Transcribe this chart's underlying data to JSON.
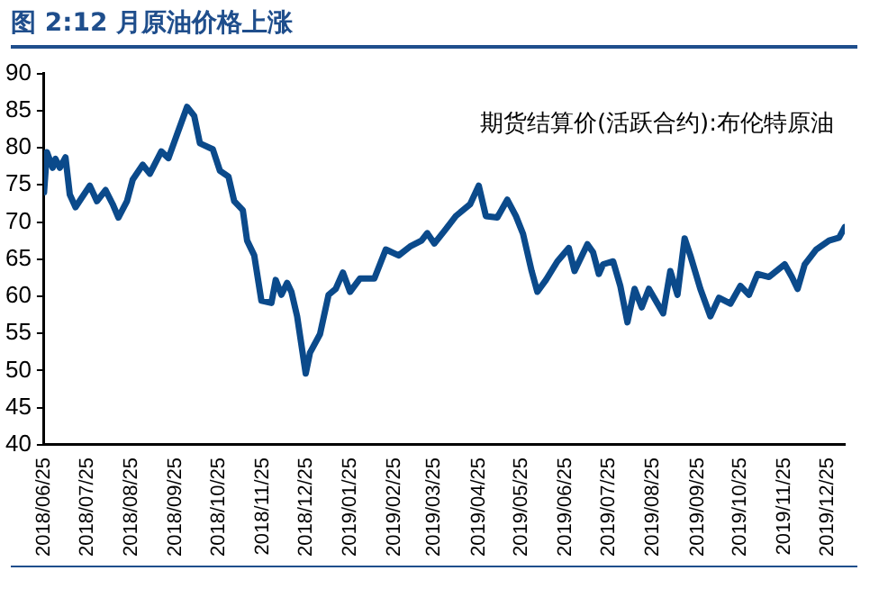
{
  "chart_data": {
    "type": "line",
    "title": "图 2:12 月原油价格上涨",
    "legend": "top right",
    "marker": "none",
    "line_style": "solid",
    "grid": false,
    "xlim": [
      "2018-06-25",
      "2020-01-06"
    ],
    "xticks": [
      {
        "value": "2018-06-25",
        "label": "2018/06/25"
      },
      {
        "value": "2018-07-25",
        "label": "2018/07/25"
      },
      {
        "value": "2018-08-25",
        "label": "2018/08/25"
      },
      {
        "value": "2018-09-25",
        "label": "2018/09/25"
      },
      {
        "value": "2018-10-25",
        "label": "2018/10/25"
      },
      {
        "value": "2018-11-25",
        "label": "2018/11/25"
      },
      {
        "value": "2018-12-25",
        "label": "2018/12/25"
      },
      {
        "value": "2019-01-25",
        "label": "2019/01/25"
      },
      {
        "value": "2019-02-25",
        "label": "2019/02/25"
      },
      {
        "value": "2019-03-25",
        "label": "2019/03/25"
      },
      {
        "value": "2019-04-25",
        "label": "2019/04/25"
      },
      {
        "value": "2019-05-25",
        "label": "2019/05/25"
      },
      {
        "value": "2019-06-25",
        "label": "2019/06/25"
      },
      {
        "value": "2019-07-25",
        "label": "2019/07/25"
      },
      {
        "value": "2019-08-25",
        "label": "2019/08/25"
      },
      {
        "value": "2019-09-25",
        "label": "2019/09/25"
      },
      {
        "value": "2019-10-25",
        "label": "2019/10/25"
      },
      {
        "value": "2019-11-25",
        "label": "2019/11/25"
      },
      {
        "value": "2019-12-25",
        "label": "2019/12/25"
      }
    ],
    "ylim": [
      40,
      90
    ],
    "yticks": [
      40,
      45,
      50,
      55,
      60,
      65,
      70,
      75,
      80,
      85,
      90
    ],
    "x": [
      "2018-06-25",
      "2018-06-27",
      "2018-07-01",
      "2018-07-03",
      "2018-07-06",
      "2018-07-10",
      "2018-07-13",
      "2018-07-17",
      "2018-07-27",
      "2018-08-01",
      "2018-08-07",
      "2018-08-12",
      "2018-08-16",
      "2018-08-22",
      "2018-08-26",
      "2018-09-02",
      "2018-09-07",
      "2018-09-15",
      "2018-09-20",
      "2018-09-26",
      "2018-10-03",
      "2018-10-08",
      "2018-10-12",
      "2018-10-21",
      "2018-10-26",
      "2018-11-01",
      "2018-11-05",
      "2018-11-11",
      "2018-11-14",
      "2018-11-19",
      "2018-11-24",
      "2018-12-01",
      "2018-12-04",
      "2018-12-08",
      "2018-12-12",
      "2018-12-15",
      "2018-12-19",
      "2018-12-25",
      "2018-12-28",
      "2019-01-04",
      "2019-01-10",
      "2019-01-15",
      "2019-01-20",
      "2019-01-25",
      "2019-02-01",
      "2019-02-11",
      "2019-02-19",
      "2019-02-28",
      "2019-03-08",
      "2019-03-16",
      "2019-03-20",
      "2019-03-25",
      "2019-04-01",
      "2019-04-09",
      "2019-04-19",
      "2019-04-25",
      "2019-04-30",
      "2019-05-08",
      "2019-05-15",
      "2019-05-21",
      "2019-05-26",
      "2019-06-01",
      "2019-06-05",
      "2019-06-11",
      "2019-06-19",
      "2019-06-27",
      "2019-07-01",
      "2019-07-10",
      "2019-07-14",
      "2019-07-18",
      "2019-07-21",
      "2019-07-28",
      "2019-08-02",
      "2019-08-07",
      "2019-08-12",
      "2019-08-17",
      "2019-08-22",
      "2019-09-01",
      "2019-09-06",
      "2019-09-11",
      "2019-09-16",
      "2019-09-20",
      "2019-09-27",
      "2019-10-04",
      "2019-10-10",
      "2019-10-18",
      "2019-10-25",
      "2019-10-31",
      "2019-11-06",
      "2019-11-14",
      "2019-11-25",
      "2019-11-30",
      "2019-12-04",
      "2019-12-09",
      "2019-12-17",
      "2019-12-26",
      "2020-01-02",
      "2020-01-06"
    ],
    "series": [
      {
        "name": "期货结算价(活跃合约):布伦特原油",
        "color": "#0b4a8b",
        "values": [
          74,
          79.4,
          77.3,
          78.5,
          77.3,
          78.7,
          73.7,
          72,
          74.9,
          72.8,
          74.3,
          72.4,
          70.6,
          72.8,
          75.7,
          77.7,
          76.5,
          79.5,
          78.6,
          81.8,
          85.5,
          84.3,
          80.6,
          79.8,
          76.9,
          76.1,
          72.8,
          71.6,
          67.5,
          65.5,
          59.4,
          59.1,
          62.2,
          60.2,
          61.8,
          60.6,
          57.3,
          49.6,
          52.4,
          54.9,
          60.2,
          61,
          63.2,
          60.6,
          62.4,
          62.4,
          66.3,
          65.5,
          66.7,
          67.5,
          68.5,
          67.1,
          68.8,
          70.8,
          72.4,
          74.9,
          70.8,
          70.6,
          73,
          70.8,
          68.4,
          63.4,
          60.6,
          62.2,
          64.7,
          66.5,
          63.4,
          67,
          65.9,
          63,
          64.3,
          64.7,
          61.4,
          56.5,
          61,
          58.5,
          61,
          57.7,
          63.4,
          60.2,
          67.8,
          65.5,
          61,
          57.3,
          59.8,
          59,
          61.4,
          60.2,
          63,
          62.6,
          64.3,
          62.6,
          61,
          64.3,
          66.3,
          67.5,
          67.9,
          69.3
        ]
      }
    ]
  }
}
